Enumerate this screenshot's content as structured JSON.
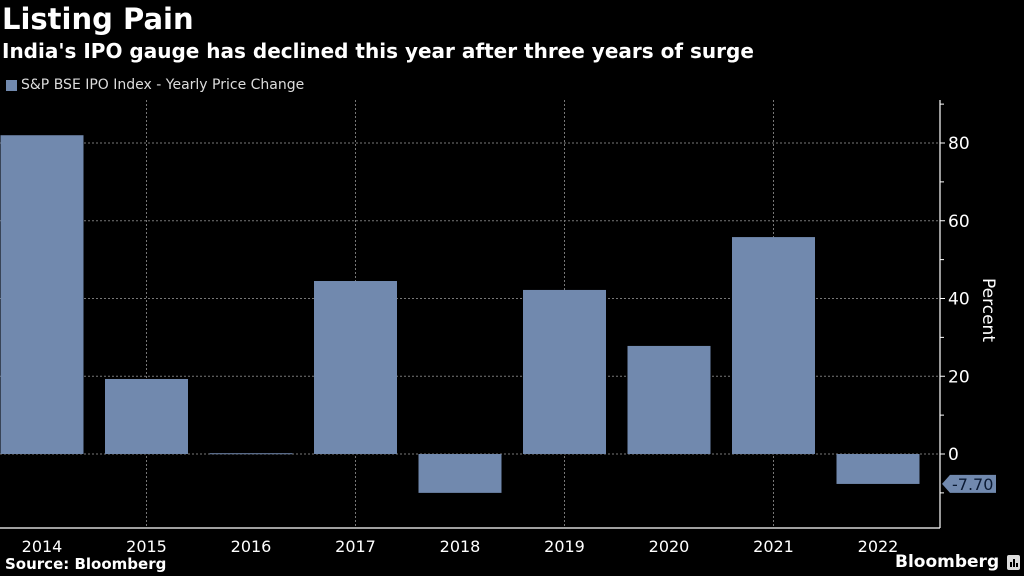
{
  "header": {
    "title": "Listing Pain",
    "subtitle": "India's IPO gauge has declined this year after three years of surge"
  },
  "footer": {
    "source": "Source: Bloomberg",
    "brand": "Bloomberg"
  },
  "colors": {
    "bar": "#7189ae",
    "background": "#000000",
    "grid": "#777777",
    "axis": "#ffffff",
    "label_box": "#7189ae",
    "label_text": "#0b1a33"
  },
  "chart_data": {
    "type": "bar",
    "title": "Listing Pain",
    "subtitle": "India's IPO gauge has declined this year after three years of surge",
    "legend": [
      "S&P BSE IPO Index - Yearly Price Change"
    ],
    "legend_position": "top-left",
    "categories": [
      "2014",
      "2015",
      "2016",
      "2017",
      "2018",
      "2019",
      "2020",
      "2021",
      "2022"
    ],
    "series": [
      {
        "name": "S&P BSE IPO Index - Yearly Price Change",
        "values": [
          82.0,
          19.3,
          0.2,
          44.5,
          -10.0,
          42.2,
          27.8,
          55.8,
          -7.7
        ]
      }
    ],
    "last_value_label": "-7.70",
    "xlabel": "",
    "ylabel": "Percent",
    "y_axis_side": "right",
    "ylim": [
      -19,
      91
    ],
    "yticks": [
      0,
      20,
      40,
      60,
      80
    ],
    "ytick_labels": [
      "0",
      "20",
      "40",
      "60",
      "80"
    ],
    "grid": true
  }
}
